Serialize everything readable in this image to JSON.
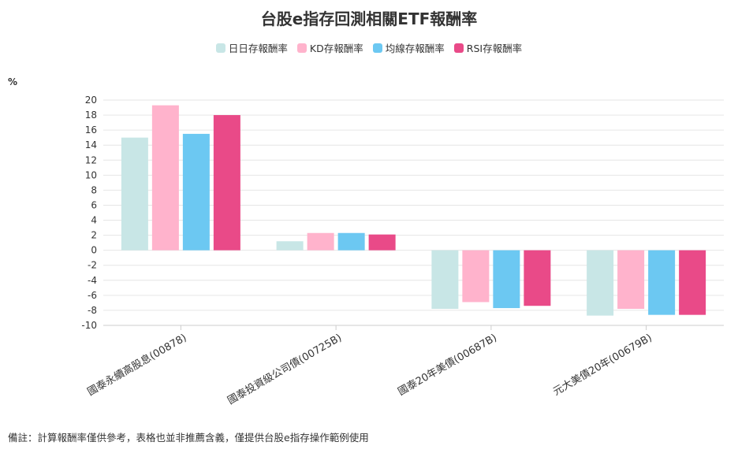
{
  "title": "台股e指存回測相關ETF報酬率",
  "y_unit": "%",
  "footnote": "備註：計算報酬率僅供參考，表格也並非推薦含義，僅提供台股e指存操作範例使用",
  "colors": {
    "daily": "#c8e6e6",
    "kd": "#ffb3cc",
    "ma": "#6cc8f2",
    "rsi": "#e94a88",
    "grid": "#e6e6e6"
  },
  "chart_data": {
    "type": "bar",
    "title": "台股e指存回測相關ETF報酬率",
    "xlabel": "",
    "ylabel": "%",
    "ylim": [
      -10,
      20
    ],
    "yticks": [
      20,
      18,
      16,
      14,
      12,
      10,
      8,
      6,
      4,
      2,
      0,
      -2,
      -4,
      -6,
      -8,
      -10
    ],
    "grid": true,
    "legend_position": "top-center",
    "categories": [
      "國泰永續高股息(00878)",
      "國泰投資級公司債(00725B)",
      "國泰20年美債(00687B)",
      "元大美債20年(00679B)"
    ],
    "series": [
      {
        "name": "日日存報酬率",
        "color": "#c8e6e6",
        "values": [
          15.0,
          1.2,
          -7.8,
          -8.7
        ]
      },
      {
        "name": "KD存報酬率",
        "color": "#ffb3cc",
        "values": [
          19.3,
          2.3,
          -6.9,
          -7.8
        ]
      },
      {
        "name": "均線存報酬率",
        "color": "#6cc8f2",
        "values": [
          15.5,
          2.3,
          -7.7,
          -8.6
        ]
      },
      {
        "name": "RSI存報酬率",
        "color": "#e94a88",
        "values": [
          18.0,
          2.1,
          -7.4,
          -8.6
        ]
      }
    ]
  }
}
